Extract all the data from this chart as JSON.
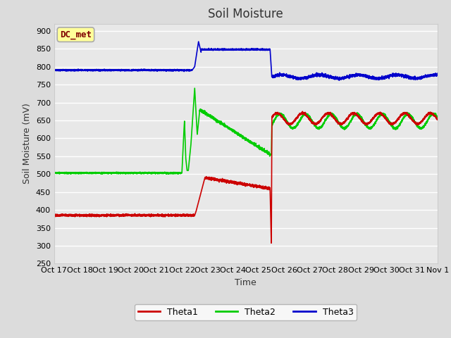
{
  "title": "Soil Moisture",
  "xlabel": "Time",
  "ylabel": "Soil Moisture (mV)",
  "ylim": [
    250,
    920
  ],
  "yticks": [
    250,
    300,
    350,
    400,
    450,
    500,
    550,
    600,
    650,
    700,
    750,
    800,
    850,
    900
  ],
  "xlim_start": 0,
  "xlim_end": 15,
  "x_tick_labels": [
    "Oct 17",
    "Oct 18",
    "Oct 19",
    "Oct 20",
    "Oct 21",
    "Oct 22",
    "Oct 23",
    "Oct 24",
    "Oct 25",
    "Oct 26",
    "Oct 27",
    "Oct 28",
    "Oct 29",
    "Oct 30",
    "Oct 31",
    "Nov 1"
  ],
  "annotation_text": "DC_met",
  "annotation_color": "#800000",
  "annotation_bg": "#FFFF99",
  "line_colors": {
    "Theta1": "#CC0000",
    "Theta2": "#00CC00",
    "Theta3": "#0000CC"
  },
  "background_color": "#E8E8E8",
  "fig_background": "#DCDCDC",
  "grid_color": "#FFFFFF",
  "title_fontsize": 12,
  "label_fontsize": 9,
  "tick_fontsize": 8
}
